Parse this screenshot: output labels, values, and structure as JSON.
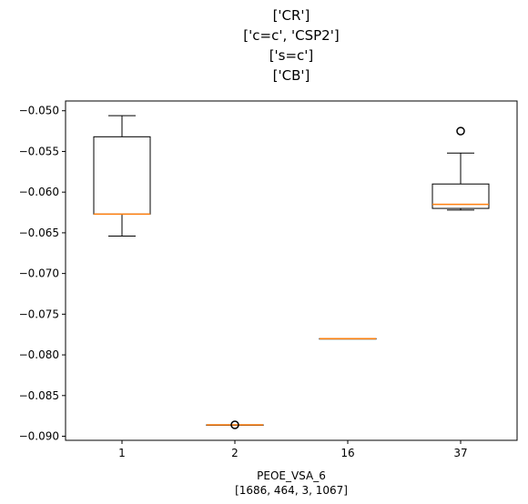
{
  "chart_data": {
    "type": "box",
    "title_lines": [
      "['CR']",
      "['c=c', 'CSP2']",
      "['s=c']",
      "['CB']"
    ],
    "xlabel_lines": [
      "PEOE_VSA_6",
      "[1686, 464, 3, 1067]"
    ],
    "ylabel": "",
    "categories": [
      "1",
      "2",
      "16",
      "37"
    ],
    "ylim": [
      -0.0905,
      -0.0488
    ],
    "yticks": [
      -0.05,
      -0.055,
      -0.06,
      -0.065,
      -0.07,
      -0.075,
      -0.08,
      -0.085,
      -0.09
    ],
    "ytick_labels": [
      "−0.050",
      "−0.055",
      "−0.060",
      "−0.065",
      "−0.070",
      "−0.075",
      "−0.080",
      "−0.085",
      "−0.090"
    ],
    "boxes": [
      {
        "category": "1",
        "whisker_low": -0.0654,
        "q1": -0.0627,
        "median": -0.0627,
        "q3": -0.0532,
        "whisker_high": -0.0506,
        "outliers": []
      },
      {
        "category": "2",
        "whisker_low": -0.0886,
        "q1": -0.0886,
        "median": -0.0886,
        "q3": -0.0886,
        "whisker_high": -0.0886,
        "outliers": [
          -0.0886
        ]
      },
      {
        "category": "16",
        "whisker_low": -0.078,
        "q1": -0.078,
        "median": -0.078,
        "q3": -0.078,
        "whisker_high": -0.078,
        "outliers": []
      },
      {
        "category": "37",
        "whisker_low": -0.0622,
        "q1": -0.062,
        "median": -0.0615,
        "q3": -0.059,
        "whisker_high": -0.0552,
        "outliers": [
          -0.0525
        ]
      }
    ],
    "colors": {
      "box": "#000000",
      "median": "#ff7f0e",
      "background": "#ffffff"
    },
    "grid": false,
    "legend": "none"
  }
}
